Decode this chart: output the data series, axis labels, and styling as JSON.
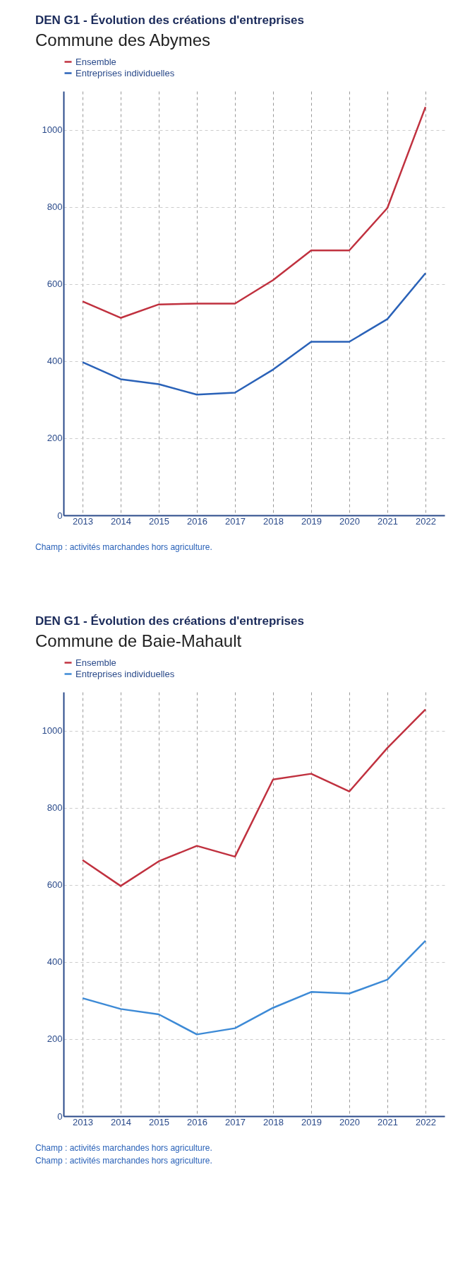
{
  "chart_data": [
    {
      "type": "line",
      "title": "DEN G1 - Évolution des créations d'entreprises",
      "subtitle": "Commune des Abymes",
      "categories": [
        "2013",
        "2014",
        "2015",
        "2016",
        "2017",
        "2018",
        "2019",
        "2020",
        "2021",
        "2022"
      ],
      "series": [
        {
          "name": "Ensemble",
          "color": "#c0313f",
          "values": [
            555,
            512,
            547,
            549,
            549,
            610,
            687,
            687,
            797,
            1059
          ]
        },
        {
          "name": "Entreprises individuelles",
          "color": "#2a62b8",
          "values": [
            397,
            353,
            340,
            313,
            318,
            378,
            450,
            450,
            509,
            628
          ]
        }
      ],
      "ylim": [
        0,
        1100
      ],
      "yticks": [
        0,
        200,
        400,
        600,
        800,
        1000
      ],
      "grid": true,
      "legend": "top left",
      "marker": "none",
      "line_style": "solid",
      "annotations": [
        "Champ : activités marchandes hors agriculture."
      ]
    },
    {
      "type": "line",
      "title": "DEN G1 - Évolution des créations d'entreprises",
      "subtitle": "Commune de Baie-Mahault",
      "categories": [
        "2013",
        "2014",
        "2015",
        "2016",
        "2017",
        "2018",
        "2019",
        "2020",
        "2021",
        "2022"
      ],
      "series": [
        {
          "name": "Ensemble",
          "color": "#c0313f",
          "values": [
            664,
            597,
            661,
            701,
            673,
            873,
            888,
            842,
            955,
            1055
          ]
        },
        {
          "name": "Entreprises individuelles",
          "color": "#3d8ad6",
          "values": [
            306,
            278,
            264,
            212,
            228,
            281,
            322,
            318,
            354,
            455
          ]
        }
      ],
      "ylim": [
        0,
        1100
      ],
      "yticks": [
        0,
        200,
        400,
        600,
        800,
        1000
      ],
      "grid": true,
      "legend": "top left",
      "marker": "none",
      "line_style": "solid",
      "annotations": [
        "Champ : activités marchandes hors agriculture.",
        "Champ : activités marchandes hors agriculture."
      ]
    }
  ]
}
